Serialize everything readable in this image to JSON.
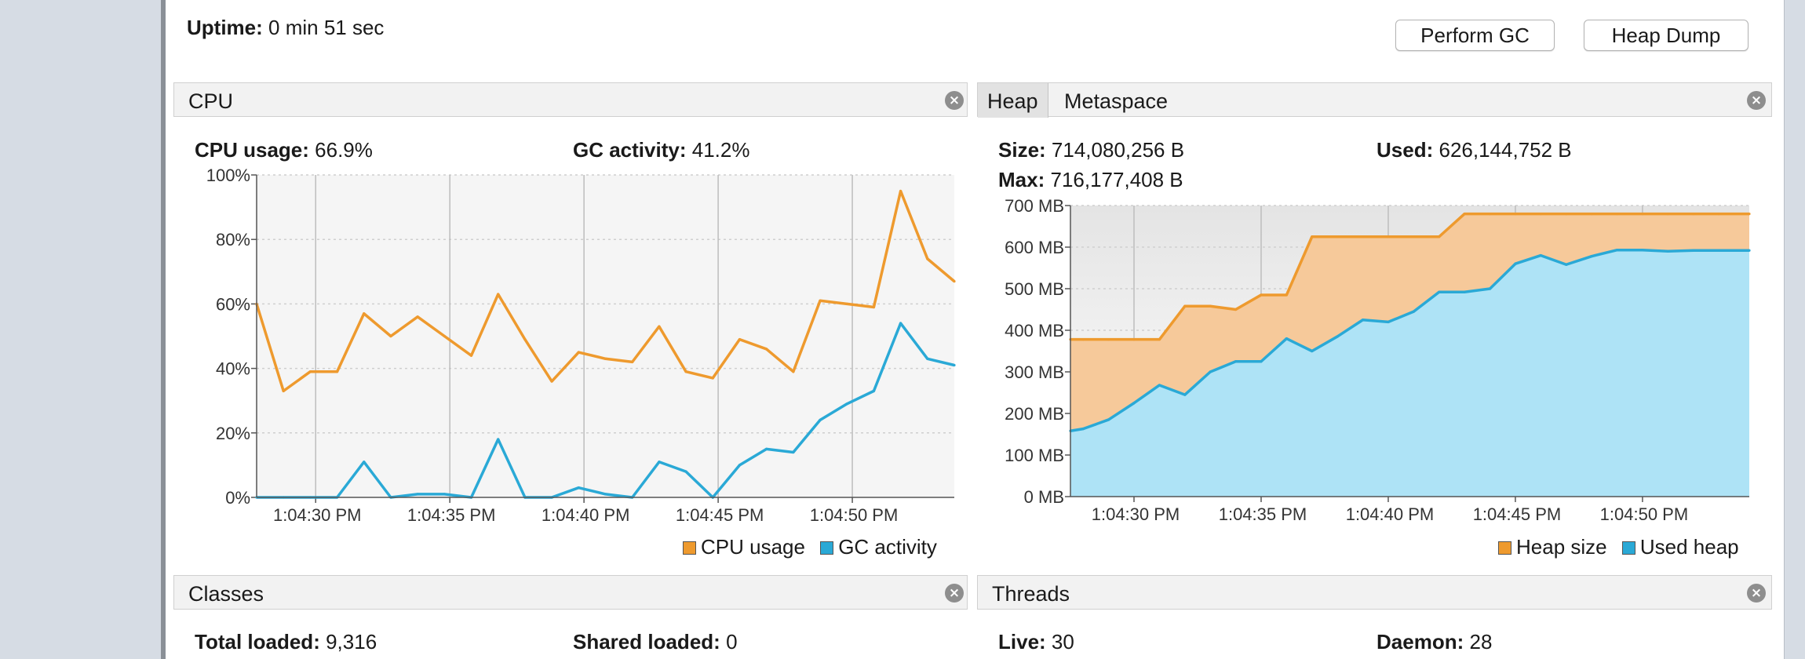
{
  "header": {
    "uptime_label": "Uptime:",
    "uptime_value": "0 min 51 sec",
    "perform_gc": "Perform GC",
    "heap_dump": "Heap Dump"
  },
  "cpu_panel": {
    "title": "CPU",
    "cpu_usage_label": "CPU usage:",
    "cpu_usage_value": "66.9%",
    "gc_activity_label": "GC activity:",
    "gc_activity_value": "41.2%"
  },
  "heap_panel": {
    "tabs": [
      "Heap",
      "Metaspace"
    ],
    "size_label": "Size:",
    "size_value": "714,080,256 B",
    "used_label": "Used:",
    "used_value": "626,144,752 B",
    "max_label": "Max:",
    "max_value": "716,177,408 B"
  },
  "classes_panel": {
    "title": "Classes",
    "total_loaded_label": "Total loaded:",
    "total_loaded_value": "9,316",
    "shared_loaded_label": "Shared loaded:",
    "shared_loaded_value": "0"
  },
  "threads_panel": {
    "title": "Threads",
    "live_label": "Live:",
    "live_value": "30",
    "daemon_label": "Daemon:",
    "daemon_value": "28"
  },
  "colors": {
    "orange": "#ee9a2e",
    "blue": "#2aa9d6",
    "heap_fill": "#f6c99a",
    "used_fill": "#aee3f6"
  },
  "icons": {
    "close": "close-circle-icon",
    "legend": "square-swatch-icon"
  },
  "chart_data": [
    {
      "type": "line",
      "x_ticks": [
        "1:04:30 PM",
        "1:04:35 PM",
        "1:04:40 PM",
        "1:04:45 PM",
        "1:04:50 PM"
      ],
      "y_ticks": [
        "0%",
        "20%",
        "40%",
        "60%",
        "80%",
        "100%"
      ],
      "ylim": [
        0,
        100
      ],
      "x": [
        27.8,
        28.8,
        29.8,
        30.8,
        31.8,
        32.8,
        33.8,
        34.8,
        35.8,
        36.8,
        37.8,
        38.8,
        39.8,
        40.8,
        41.8,
        42.8,
        43.8,
        44.8,
        45.8,
        46.8,
        47.8,
        48.8,
        49.8,
        50.8,
        51.8,
        52.8,
        53.8
      ],
      "series": [
        {
          "name": "CPU usage",
          "color": "#ee9a2e",
          "values": [
            60,
            33,
            39,
            39,
            57,
            50,
            56,
            50,
            44,
            63,
            49,
            36,
            45,
            43,
            42,
            53,
            39,
            37,
            49,
            46,
            39,
            61,
            60,
            59,
            95,
            74,
            67
          ]
        },
        {
          "name": "GC activity",
          "color": "#2aa9d6",
          "values": [
            0,
            0,
            0,
            0,
            11,
            0,
            1,
            1,
            0,
            18,
            0,
            0,
            3,
            1,
            0,
            11,
            8,
            0,
            10,
            15,
            14,
            24,
            29,
            33,
            54,
            43,
            41
          ]
        }
      ],
      "legend_position": "bottom-right",
      "grid": true
    },
    {
      "type": "area",
      "x_ticks": [
        "1:04:30 PM",
        "1:04:35 PM",
        "1:04:40 PM",
        "1:04:45 PM",
        "1:04:50 PM"
      ],
      "y_ticks": [
        "0 MB",
        "100 MB",
        "200 MB",
        "300 MB",
        "400 MB",
        "500 MB",
        "600 MB",
        "700 MB"
      ],
      "ylim": [
        0,
        700
      ],
      "x": [
        27.5,
        28,
        29,
        30,
        31,
        32,
        33,
        34,
        35,
        36,
        37,
        38,
        39,
        40,
        41,
        42,
        43,
        44,
        45,
        46,
        47,
        48,
        49,
        50,
        51,
        52,
        53,
        54.2
      ],
      "series": [
        {
          "name": "Heap size",
          "color": "#ee9a2e",
          "values": [
            378,
            378,
            378,
            378,
            378,
            458,
            458,
            450,
            485,
            485,
            625,
            625,
            625,
            625,
            625,
            625,
            680,
            680,
            680,
            680,
            680,
            680,
            680,
            680,
            680,
            680,
            680,
            680
          ]
        },
        {
          "name": "Used heap",
          "color": "#2aa9d6",
          "values": [
            158,
            163,
            185,
            225,
            268,
            245,
            300,
            325,
            325,
            380,
            350,
            385,
            425,
            420,
            445,
            492,
            492,
            500,
            560,
            580,
            558,
            578,
            593,
            593,
            590,
            592,
            592,
            592
          ]
        }
      ],
      "legend_position": "bottom-right",
      "grid": true
    }
  ]
}
